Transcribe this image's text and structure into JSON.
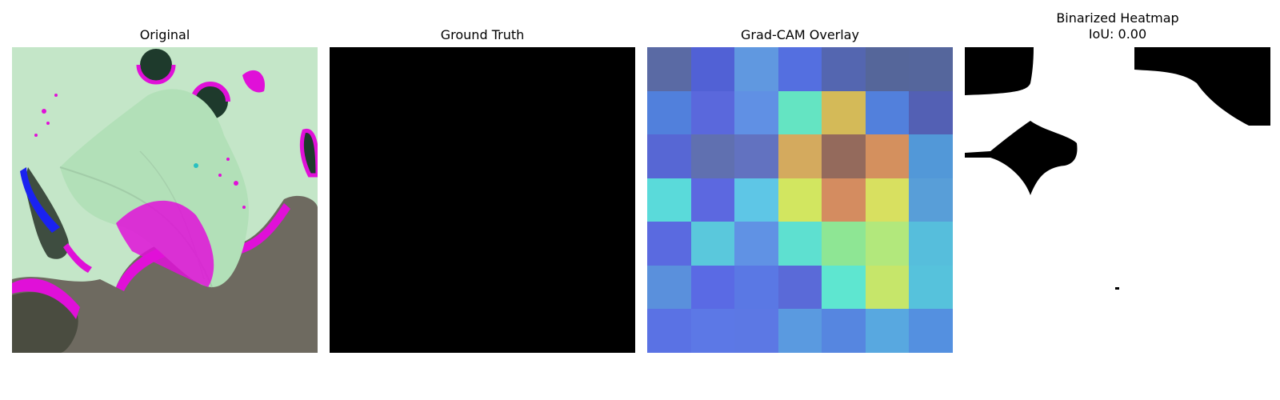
{
  "panels": {
    "original": {
      "title": "Original"
    },
    "ground_truth": {
      "title": "Ground Truth"
    },
    "gradcam": {
      "title": "Grad-CAM Overlay",
      "grid": [
        [
          "#5a6aa4",
          "#5161d5",
          "#6098e0",
          "#546fe0",
          "#5466b0",
          "#55669a",
          "#55669c"
        ],
        [
          "#5180dc",
          "#5a68dc",
          "#6090e4",
          "#64e4c2",
          "#d4ba58",
          "#5280dc",
          "#5360b4"
        ],
        [
          "#5767d4",
          "#6070b0",
          "#6272c0",
          "#d4aa5e",
          "#946a5c",
          "#d4905e",
          "#5298d8"
        ],
        [
          "#5adada",
          "#5c68e0",
          "#5ec6e6",
          "#d2e660",
          "#d48c60",
          "#d8e060",
          "#589ed8"
        ],
        [
          "#5a6ae0",
          "#5ac8dc",
          "#6092e4",
          "#5ee0d0",
          "#8ee694",
          "#b2e87c",
          "#56bedc"
        ],
        [
          "#5a90dc",
          "#5a6ae4",
          "#5a78e4",
          "#5a6ad8",
          "#5ee6d0",
          "#c6e66a",
          "#56c2dc"
        ],
        [
          "#5a72e4",
          "#5c78e6",
          "#5c78e4",
          "#5a9ae0",
          "#5686e0",
          "#58a8e0",
          "#5490e0"
        ]
      ]
    },
    "binarized": {
      "title_line1": "Binarized Heatmap",
      "title_line2": "IoU: 0.00"
    }
  }
}
